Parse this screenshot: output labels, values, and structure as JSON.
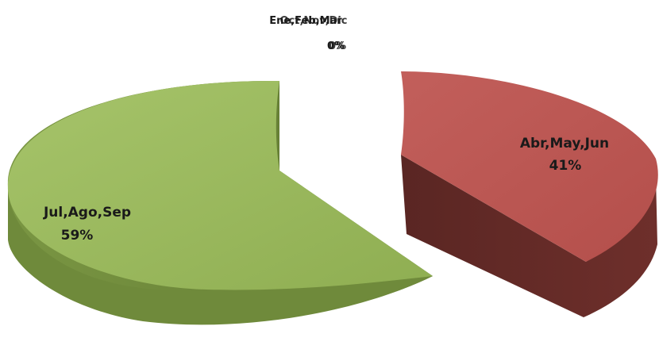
{
  "chart_data": {
    "type": "pie",
    "title": "",
    "legend": "none",
    "slices": [
      {
        "label": "Ene,Feb,Mar",
        "value": 0,
        "percent_label": "0%",
        "color": "#4f81bd"
      },
      {
        "label": "Abr,May,Jun",
        "value": 41,
        "percent_label": "41%",
        "color": "#c0504d"
      },
      {
        "label": "Jul,Ago,Sep",
        "value": 59,
        "percent_label": "59%",
        "color": "#9bbb59"
      },
      {
        "label": "Oct,Nov,Dic",
        "value": 0,
        "percent_label": "0%",
        "color": "#8064a2"
      }
    ]
  }
}
